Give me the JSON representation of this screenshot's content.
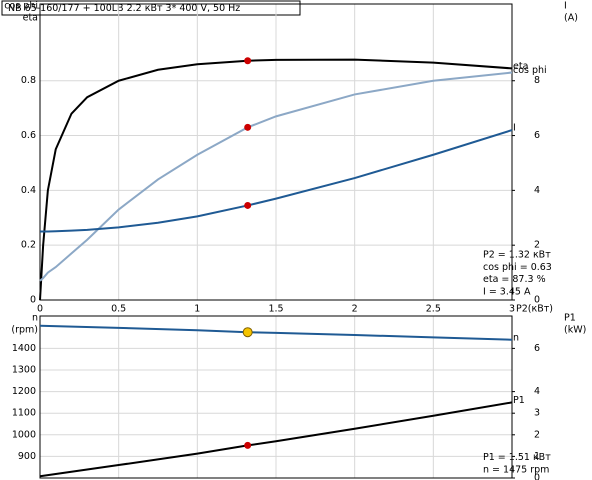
{
  "chart_data": [
    {
      "type": "line",
      "title": "NB 65-160/177 + 100LB    2.2 кВт   3* 400 V, 50 Hz",
      "ylabel": [
        "cos phi",
        "eta"
      ],
      "y2label": [
        "I",
        "(A)"
      ],
      "xlabel": "P2(кВт)",
      "x": [
        0,
        0.02,
        0.05,
        0.1,
        0.2,
        0.3,
        0.5,
        0.75,
        1,
        1.32,
        1.5,
        2,
        2.5,
        3
      ],
      "xlim": [
        0,
        3
      ],
      "xticks": [
        0,
        0.5,
        1,
        1.5,
        2,
        2.5,
        3
      ],
      "ylim": [
        0,
        1.08
      ],
      "yticks": [
        0,
        0.2,
        0.4,
        0.6,
        0.8
      ],
      "y2lim": [
        0,
        10.8
      ],
      "y2ticks": [
        0,
        2,
        4,
        6,
        8
      ],
      "grid": true,
      "operating_x": 1.32,
      "marker_color": "#cc0000",
      "series": [
        {
          "name": "eta",
          "color": "#000000",
          "values": [
            0,
            0.2,
            0.4,
            0.55,
            0.68,
            0.74,
            0.8,
            0.84,
            0.86,
            0.873,
            0.876,
            0.877,
            0.866,
            0.845
          ]
        },
        {
          "name": "cos phi",
          "color": "#8ca8c6",
          "values": [
            0.07,
            0.08,
            0.1,
            0.12,
            0.17,
            0.22,
            0.33,
            0.44,
            0.53,
            0.63,
            0.67,
            0.75,
            0.8,
            0.83
          ]
        },
        {
          "name": "I",
          "color": "#1f5a94",
          "axis": "y2",
          "values": [
            2.5,
            2.5,
            2.5,
            2.51,
            2.53,
            2.56,
            2.65,
            2.82,
            3.05,
            3.45,
            3.7,
            4.45,
            5.3,
            6.2
          ]
        }
      ],
      "annotations": [
        "P2  = 1.32 кВт",
        "cos phi = 0.63",
        "eta  = 87.3 %",
        "I   = 3.45 A"
      ]
    },
    {
      "type": "line",
      "ylabel": [
        "n",
        "(rpm)"
      ],
      "y2label": [
        "P1",
        "(kW)"
      ],
      "x": [
        0,
        0.5,
        1,
        1.32,
        1.5,
        2,
        2.5,
        3
      ],
      "xlim": [
        0,
        3
      ],
      "ylim": [
        800,
        1550
      ],
      "yticks": [
        900,
        1000,
        1100,
        1200,
        1300,
        1400
      ],
      "y2lim": [
        0,
        7.5
      ],
      "y2ticks": [
        0,
        1,
        2,
        3,
        4,
        6
      ],
      "grid": true,
      "operating_x": 1.32,
      "series": [
        {
          "name": "n",
          "color": "#1f5a94",
          "marker_color": "#f5c400",
          "values": [
            1505,
            1495,
            1484,
            1475,
            1472,
            1462,
            1451,
            1440
          ]
        },
        {
          "name": "P1",
          "color": "#000000",
          "axis": "y2",
          "marker_color": "#cc0000",
          "values": [
            0.08,
            0.6,
            1.13,
            1.51,
            1.7,
            2.28,
            2.88,
            3.5
          ]
        }
      ],
      "annotations": [
        "P1  = 1.51 кВт",
        "n   = 1475 rpm"
      ]
    }
  ]
}
